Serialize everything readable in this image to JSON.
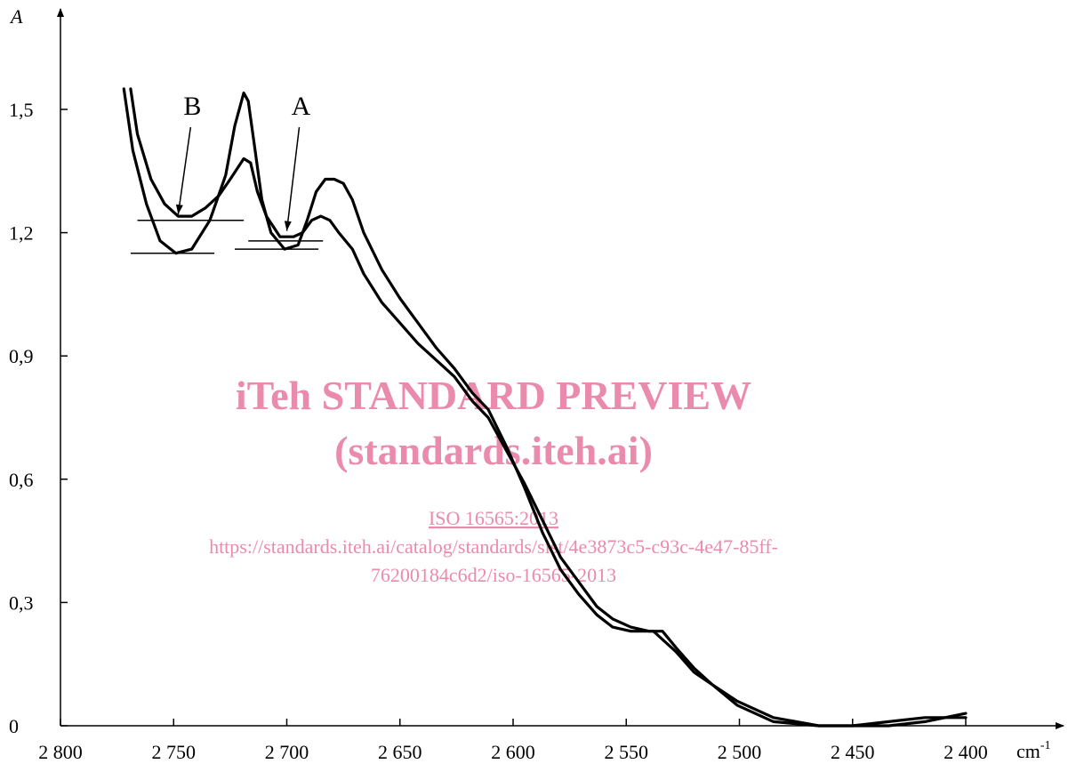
{
  "chart_data": {
    "type": "line",
    "y_label": "A",
    "x_label": "cm",
    "x_label_sup": "-1",
    "xlim": [
      2800,
      2400
    ],
    "ylim": [
      0,
      1.5
    ],
    "xticks": [
      {
        "value": 2800,
        "label": "2 800"
      },
      {
        "value": 2750,
        "label": "2 750"
      },
      {
        "value": 2700,
        "label": "2 700"
      },
      {
        "value": 2650,
        "label": "2 650"
      },
      {
        "value": 2600,
        "label": "2 600"
      },
      {
        "value": 2550,
        "label": "2 550"
      },
      {
        "value": 2500,
        "label": "2 500"
      },
      {
        "value": 2450,
        "label": "2 450"
      },
      {
        "value": 2400,
        "label": "2 400"
      }
    ],
    "yticks": [
      0,
      {
        "value": 0.3,
        "label": "0,3"
      },
      {
        "value": 0.6,
        "label": "0,6"
      },
      {
        "value": 0.9,
        "label": "0,9"
      },
      {
        "value": 1.2,
        "label": "1,2"
      },
      {
        "value": 1.5,
        "label": "1,5"
      }
    ],
    "series": [
      {
        "color": "#000000",
        "x": [
          2772,
          2768,
          2762,
          2756,
          2749,
          2742,
          2734,
          2727,
          2723,
          2719,
          2717,
          2714,
          2711,
          2707,
          2701,
          2695,
          2691,
          2687,
          2683,
          2679,
          2675,
          2671,
          2666,
          2658,
          2650,
          2642,
          2634,
          2626,
          2618,
          2611,
          2603,
          2595,
          2587,
          2579,
          2571,
          2563,
          2556,
          2548,
          2544,
          2538,
          2534,
          2528,
          2520,
          2512,
          2501,
          2485,
          2465,
          2450,
          2434,
          2418,
          2400
        ],
        "values": [
          1.55,
          1.4,
          1.27,
          1.18,
          1.15,
          1.16,
          1.23,
          1.34,
          1.46,
          1.54,
          1.52,
          1.4,
          1.28,
          1.2,
          1.16,
          1.17,
          1.23,
          1.3,
          1.33,
          1.33,
          1.32,
          1.28,
          1.2,
          1.11,
          1.04,
          0.98,
          0.92,
          0.87,
          0.81,
          0.77,
          0.68,
          0.58,
          0.47,
          0.38,
          0.32,
          0.27,
          0.24,
          0.23,
          0.23,
          0.23,
          0.21,
          0.18,
          0.13,
          0.1,
          0.05,
          0.01,
          0,
          0,
          0,
          0.01,
          0.03
        ]
      },
      {
        "color": "#000000",
        "x": [
          2769,
          2766,
          2760,
          2754,
          2748,
          2742,
          2736,
          2730,
          2725,
          2719,
          2716,
          2713,
          2709,
          2703,
          2697,
          2693,
          2689,
          2685,
          2681,
          2677,
          2671,
          2666,
          2658,
          2650,
          2642,
          2634,
          2626,
          2618,
          2611,
          2603,
          2595,
          2587,
          2579,
          2571,
          2563,
          2556,
          2548,
          2540,
          2534,
          2528,
          2520,
          2512,
          2501,
          2485,
          2465,
          2450,
          2434,
          2418,
          2400
        ],
        "values": [
          1.55,
          1.44,
          1.33,
          1.27,
          1.24,
          1.24,
          1.26,
          1.29,
          1.33,
          1.38,
          1.37,
          1.3,
          1.24,
          1.19,
          1.19,
          1.2,
          1.23,
          1.24,
          1.23,
          1.2,
          1.16,
          1.1,
          1.03,
          0.98,
          0.93,
          0.89,
          0.85,
          0.79,
          0.75,
          0.67,
          0.59,
          0.5,
          0.41,
          0.35,
          0.29,
          0.26,
          0.24,
          0.23,
          0.23,
          0.19,
          0.14,
          0.1,
          0.06,
          0.02,
          0,
          0,
          0.01,
          0.02,
          0.02
        ]
      }
    ],
    "annotations": [
      {
        "text": "B",
        "x": 2748,
        "y": 1.24
      },
      {
        "text": "A",
        "x": 2700,
        "y": 1.2
      }
    ],
    "baselines": [
      {
        "x": [
          2766,
          2719
        ],
        "y": [
          1.23,
          1.23
        ]
      },
      {
        "x": [
          2769,
          2732
        ],
        "y": [
          1.15,
          1.15
        ]
      },
      {
        "x": [
          2717,
          2684
        ],
        "y": [
          1.18,
          1.18
        ]
      },
      {
        "x": [
          2723,
          2686
        ],
        "y": [
          1.16,
          1.16
        ]
      }
    ]
  },
  "watermark": {
    "lines": [
      "iTeh STANDARD PREVIEW",
      "(standards.iteh.ai)"
    ],
    "link": "ISO 16565:2013",
    "url": [
      "https://standards.iteh.ai/catalog/standards/sist/4e3873c5-c93c-4e47-85ff-",
      "76200184c6d2/iso-16565-2013"
    ]
  }
}
